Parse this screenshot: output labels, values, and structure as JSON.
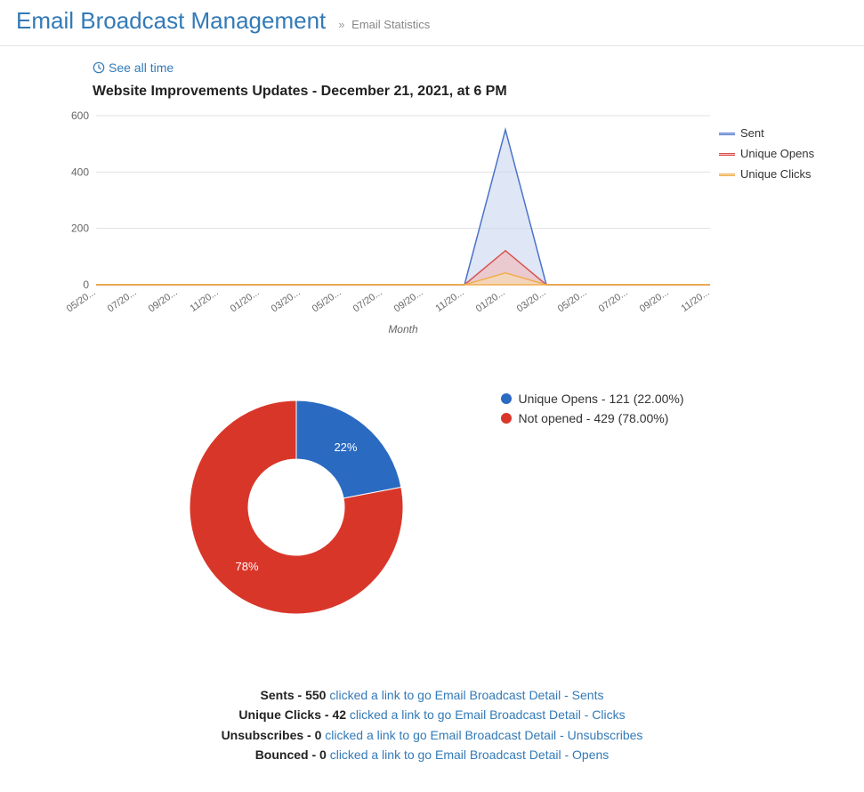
{
  "header": {
    "title": "Email Broadcast Management",
    "breadcrumb": "Email Statistics"
  },
  "see_all_link": "See all time",
  "line_chart": {
    "type": "area",
    "title": "Website Improvements Updates - December 21, 2021, at 6 PM",
    "x_axis_title": "Month",
    "x_labels": [
      "05/20...",
      "07/20...",
      "09/20...",
      "11/20...",
      "01/20...",
      "03/20...",
      "05/20...",
      "07/20...",
      "09/20...",
      "11/20...",
      "01/20...",
      "03/20...",
      "05/20...",
      "07/20...",
      "09/20...",
      "11/20..."
    ],
    "y_ticks": [
      0,
      200,
      400,
      600
    ],
    "ylim": [
      0,
      600
    ],
    "grid_color": "#e0e0e0",
    "series": [
      {
        "name": "Sent",
        "stroke": "#4a74c9",
        "fill": "#c9d6ef",
        "fill_opacity": 0.6,
        "data": [
          0,
          0,
          0,
          0,
          0,
          0,
          0,
          0,
          0,
          0,
          550,
          0,
          0,
          0,
          0,
          0
        ]
      },
      {
        "name": "Unique Opens",
        "stroke": "#d9534f",
        "fill": "#f2b8b6",
        "fill_opacity": 0.6,
        "data": [
          0,
          0,
          0,
          0,
          0,
          0,
          0,
          0,
          0,
          0,
          121,
          0,
          0,
          0,
          0,
          0
        ]
      },
      {
        "name": "Unique Clicks",
        "stroke": "#f0ad4e",
        "fill": "#f8dcae",
        "fill_opacity": 0.6,
        "data": [
          0,
          0,
          0,
          0,
          0,
          0,
          0,
          0,
          0,
          0,
          42,
          0,
          0,
          0,
          0,
          0
        ]
      }
    ]
  },
  "donut_chart": {
    "type": "pie",
    "inner_radius_ratio": 0.45,
    "slices": [
      {
        "label": "Unique Opens",
        "value": 121,
        "pct": 22.0,
        "pct_label": "22%",
        "color": "#2a6ac1",
        "legend": "Unique Opens - 121 (22.00%)"
      },
      {
        "label": "Not opened",
        "value": 429,
        "pct": 78.0,
        "pct_label": "78%",
        "color": "#d9362a",
        "legend": "Not opened - 429 (78.00%)"
      }
    ]
  },
  "stats": [
    {
      "label": "Sents - 550",
      "link": "clicked a link to go Email Broadcast Detail - Sents"
    },
    {
      "label": "Unique Clicks - 42",
      "link": "clicked a link to go Email Broadcast Detail - Clicks"
    },
    {
      "label": "Unsubscribes - 0",
      "link": "clicked a link to go Email Broadcast Detail - Unsubscribes"
    },
    {
      "label": "Bounced - 0",
      "link": "clicked a link to go Email Broadcast Detail - Opens"
    }
  ]
}
